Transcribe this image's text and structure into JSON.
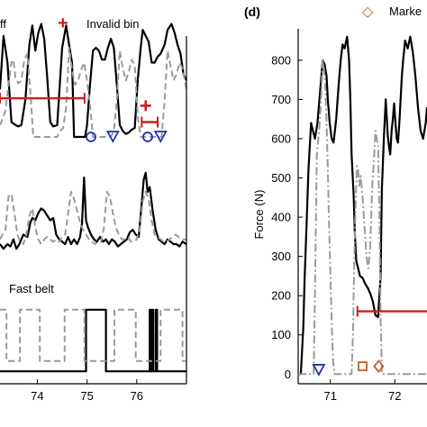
{
  "legend_left": {
    "off_label": "ff",
    "invalid_label": "Invalid bin",
    "invalid_symbol": "+"
  },
  "legend_right": {
    "marker_label": "Marke",
    "marker_symbol": "◇"
  },
  "colors": {
    "black_series": "#000000",
    "gray_series": "#9a9a9a",
    "invalid_red": "#cc1f1f",
    "blue_marker": "#1f2fb8",
    "orange_marker": "#c0622a"
  },
  "chart_data": [
    {
      "id": "left-top",
      "type": "line",
      "x_domain": [
        73.25,
        77.0
      ],
      "y_domain": [
        0,
        1
      ],
      "series": [
        {
          "style": "solid",
          "x": [
            73.25,
            73.32,
            73.4,
            73.48,
            73.56,
            73.62,
            73.68,
            73.76,
            73.84,
            73.9,
            73.96,
            74.02,
            74.08,
            74.14,
            74.2,
            74.26,
            74.32,
            74.4,
            74.5,
            74.58,
            74.64,
            74.7,
            74.74,
            74.8,
            74.86,
            74.92,
            74.96,
            75.0,
            75.06,
            75.12,
            75.18,
            75.24,
            75.3,
            75.36,
            75.42,
            75.48,
            75.54,
            75.6,
            75.66,
            75.72,
            75.78,
            75.84,
            75.9,
            75.96,
            76.02,
            76.08,
            76.12,
            76.18,
            76.24,
            76.3,
            76.36,
            76.42,
            76.48,
            76.56,
            76.62,
            76.7,
            76.76,
            76.82,
            76.88,
            76.94,
            77.0
          ],
          "y": [
            0.52,
            0.88,
            0.7,
            0.3,
            0.28,
            0.27,
            0.28,
            0.45,
            0.82,
            0.95,
            0.78,
            0.9,
            0.96,
            0.86,
            0.6,
            0.3,
            0.27,
            0.28,
            0.8,
            0.95,
            0.82,
            0.7,
            0.2,
            0.2,
            0.2,
            0.2,
            0.2,
            0.28,
            0.55,
            0.78,
            0.8,
            0.78,
            0.72,
            0.72,
            0.8,
            0.86,
            0.8,
            0.55,
            0.28,
            0.24,
            0.22,
            0.23,
            0.25,
            0.26,
            0.58,
            0.8,
            0.92,
            0.88,
            0.84,
            0.7,
            0.7,
            0.74,
            0.76,
            0.82,
            0.92,
            0.96,
            0.9,
            0.82,
            0.76,
            0.62,
            0.58
          ]
        },
        {
          "style": "dashed",
          "x": [
            73.25,
            73.3,
            73.36,
            73.42,
            73.48,
            73.52,
            73.56,
            73.62,
            73.68,
            73.74,
            73.8,
            73.86,
            73.92,
            73.98,
            74.04,
            74.1,
            74.16,
            74.22,
            74.28,
            74.34,
            74.4,
            74.46,
            74.52,
            74.58,
            74.64,
            74.7,
            74.76,
            74.82,
            74.88,
            74.94,
            75.0,
            75.06,
            75.12,
            75.18,
            75.24,
            75.3,
            75.36,
            75.42,
            75.48,
            75.54,
            75.6,
            75.66,
            75.72,
            75.78,
            75.84,
            75.9,
            75.96,
            76.02,
            76.08,
            76.14,
            76.2,
            76.26,
            76.32,
            76.38,
            76.44,
            76.5,
            76.56,
            76.62,
            76.68,
            76.74,
            76.8,
            76.86,
            76.92,
            77.0
          ],
          "y": [
            0.28,
            0.32,
            0.38,
            0.55,
            0.7,
            0.72,
            0.6,
            0.56,
            0.58,
            0.72,
            0.76,
            0.5,
            0.2,
            0.2,
            0.2,
            0.2,
            0.2,
            0.2,
            0.2,
            0.2,
            0.2,
            0.24,
            0.26,
            0.4,
            0.8,
            0.65,
            0.55,
            0.58,
            0.65,
            0.7,
            0.58,
            0.42,
            0.2,
            0.2,
            0.2,
            0.2,
            0.2,
            0.2,
            0.2,
            0.24,
            0.45,
            0.78,
            0.66,
            0.58,
            0.64,
            0.72,
            0.68,
            0.34,
            0.2,
            0.2,
            0.2,
            0.2,
            0.2,
            0.2,
            0.2,
            0.2,
            0.44,
            0.78,
            0.68,
            0.58,
            0.62,
            0.7,
            0.66,
            0.52
          ]
        }
      ],
      "invalid_bins": [
        {
          "x0": 73.25,
          "x1": 74.95,
          "y": 0.46
        },
        {
          "x0": 76.1,
          "x1": 76.42,
          "y": 0.3
        }
      ],
      "invalid_plus": [
        {
          "x": 76.18,
          "y": 0.41
        }
      ],
      "circle_markers": [
        {
          "x": 75.08,
          "y": 0.2
        },
        {
          "x": 76.22,
          "y": 0.2
        }
      ],
      "triangle_markers": [
        {
          "x": 75.52,
          "y": 0.2
        },
        {
          "x": 76.48,
          "y": 0.2
        }
      ]
    },
    {
      "id": "left-middle",
      "type": "line",
      "x_domain": [
        73.25,
        77.0
      ],
      "y_domain": [
        0,
        1
      ],
      "series": [
        {
          "style": "solid",
          "x": [
            73.25,
            73.32,
            73.4,
            73.46,
            73.52,
            73.58,
            73.64,
            73.72,
            73.8,
            73.86,
            73.9,
            73.96,
            74.02,
            74.08,
            74.14,
            74.2,
            74.26,
            74.32,
            74.38,
            74.44,
            74.5,
            74.56,
            74.62,
            74.68,
            74.74,
            74.8,
            74.86,
            74.9,
            74.94,
            74.98,
            75.02,
            75.08,
            75.14,
            75.2,
            75.26,
            75.32,
            75.38,
            75.44,
            75.5,
            75.56,
            75.62,
            75.68,
            75.74,
            75.8,
            75.86,
            75.92,
            75.98,
            76.04,
            76.1,
            76.14,
            76.18,
            76.22,
            76.26,
            76.32,
            76.38,
            76.44,
            76.5,
            76.56,
            76.62,
            76.68,
            76.74,
            76.8,
            76.86,
            76.92,
            77.0
          ],
          "y": [
            0.22,
            0.18,
            0.22,
            0.2,
            0.26,
            0.18,
            0.22,
            0.3,
            0.28,
            0.4,
            0.44,
            0.42,
            0.48,
            0.52,
            0.5,
            0.46,
            0.42,
            0.44,
            0.3,
            0.26,
            0.24,
            0.22,
            0.28,
            0.22,
            0.26,
            0.22,
            0.28,
            0.4,
            0.78,
            0.42,
            0.36,
            0.3,
            0.26,
            0.24,
            0.28,
            0.24,
            0.26,
            0.22,
            0.26,
            0.24,
            0.2,
            0.22,
            0.24,
            0.26,
            0.32,
            0.34,
            0.3,
            0.28,
            0.56,
            0.76,
            0.82,
            0.66,
            0.7,
            0.5,
            0.34,
            0.26,
            0.24,
            0.22,
            0.26,
            0.24,
            0.22,
            0.22,
            0.2,
            0.24,
            0.22
          ]
        },
        {
          "style": "dashed",
          "x": [
            73.25,
            73.3,
            73.36,
            73.42,
            73.48,
            73.54,
            73.6,
            73.66,
            73.72,
            73.78,
            73.84,
            73.9,
            73.96,
            74.02,
            74.08,
            74.14,
            74.2,
            74.26,
            74.32,
            74.38,
            74.44,
            74.5,
            74.56,
            74.62,
            74.68,
            74.74,
            74.8,
            74.86,
            74.92,
            74.98,
            75.04,
            75.1,
            75.16,
            75.22,
            75.28,
            75.34,
            75.4,
            75.46,
            75.52,
            75.58,
            75.64,
            75.7,
            75.76,
            75.82,
            75.88,
            75.94,
            76.0,
            76.06,
            76.12,
            76.18,
            76.24,
            76.3,
            76.36,
            76.42,
            76.48,
            76.54,
            76.6,
            76.66,
            76.72,
            76.78,
            76.84,
            76.9,
            77.0
          ],
          "y": [
            0.26,
            0.3,
            0.34,
            0.62,
            0.64,
            0.48,
            0.3,
            0.24,
            0.22,
            0.3,
            0.46,
            0.52,
            0.36,
            0.26,
            0.22,
            0.26,
            0.28,
            0.26,
            0.24,
            0.26,
            0.24,
            0.28,
            0.3,
            0.48,
            0.66,
            0.6,
            0.5,
            0.4,
            0.34,
            0.3,
            0.26,
            0.24,
            0.22,
            0.24,
            0.24,
            0.36,
            0.66,
            0.62,
            0.48,
            0.36,
            0.3,
            0.26,
            0.26,
            0.28,
            0.24,
            0.24,
            0.26,
            0.34,
            0.58,
            0.66,
            0.6,
            0.42,
            0.3,
            0.28,
            0.26,
            0.24,
            0.24,
            0.26,
            0.28,
            0.3,
            0.28,
            0.26,
            0.26
          ]
        }
      ]
    },
    {
      "id": "left-bottom",
      "type": "line",
      "title": "Fast belt",
      "x_domain": [
        73.25,
        77.0
      ],
      "y_domain": [
        0,
        1
      ],
      "x_ticks": [
        74,
        75,
        76
      ],
      "x_tick_labels": [
        "74",
        "75",
        "76"
      ],
      "series": [
        {
          "style": "solid",
          "x": [
            73.25,
            74.98,
            74.98,
            75.38,
            75.38,
            76.26,
            76.26,
            76.28,
            76.28,
            76.31,
            76.31,
            76.33,
            76.33,
            76.38,
            76.38,
            76.41,
            76.41,
            77.0
          ],
          "y": [
            0.05,
            0.05,
            0.95,
            0.95,
            0.05,
            0.05,
            0.95,
            0.95,
            0.05,
            0.05,
            0.95,
            0.95,
            0.05,
            0.05,
            0.95,
            0.95,
            0.05,
            0.05
          ]
        },
        {
          "style": "dashed",
          "x": [
            73.25,
            73.38,
            73.38,
            73.65,
            73.65,
            74.05,
            74.05,
            74.55,
            74.55,
            74.95,
            74.95,
            75.55,
            75.55,
            75.98,
            75.98,
            76.48,
            76.48,
            76.92,
            76.92,
            77.0
          ],
          "y": [
            0.95,
            0.95,
            0.2,
            0.2,
            0.95,
            0.95,
            0.2,
            0.2,
            0.95,
            0.95,
            0.2,
            0.2,
            0.95,
            0.95,
            0.2,
            0.2,
            0.95,
            0.95,
            0.2,
            0.2
          ]
        }
      ]
    },
    {
      "id": "right-d",
      "type": "line",
      "panel_label": "(d)",
      "ylabel": "Force (N)",
      "x_domain": [
        70.5,
        72.5
      ],
      "y_domain": [
        -20,
        880
      ],
      "y_ticks": [
        0,
        100,
        200,
        300,
        400,
        500,
        600,
        700,
        800
      ],
      "y_tick_labels": [
        "0",
        "100",
        "200",
        "300",
        "400",
        "500",
        "600",
        "700",
        "800"
      ],
      "x_ticks": [
        71,
        72
      ],
      "x_tick_labels": [
        "71",
        "72"
      ],
      "series": [
        {
          "style": "solid",
          "x": [
            70.5,
            70.52,
            70.54,
            70.58,
            70.6,
            70.63,
            70.66,
            70.7,
            70.73,
            70.76,
            70.8,
            70.84,
            70.88,
            70.91,
            70.94,
            70.96,
            70.99,
            71.02,
            71.05,
            71.09,
            71.13,
            71.16,
            71.19,
            71.22,
            71.26,
            71.29,
            71.31,
            71.33,
            71.36,
            71.38,
            71.4,
            71.43,
            71.46,
            71.5,
            71.54,
            71.58,
            71.62,
            71.66,
            71.7,
            71.74,
            71.78,
            71.8,
            71.83,
            71.86,
            71.89,
            71.91,
            71.93,
            71.95,
            71.97,
            71.99,
            72.01,
            72.03,
            72.05,
            72.07,
            72.09,
            72.11,
            72.13,
            72.16,
            72.2,
            72.24,
            72.28,
            72.32,
            72.36,
            72.4,
            72.44,
            72.48,
            72.5
          ],
          "y": [
            0,
            0,
            0,
            120,
            240,
            380,
            520,
            640,
            620,
            600,
            640,
            720,
            800,
            790,
            760,
            700,
            640,
            600,
            590,
            650,
            740,
            800,
            840,
            830,
            860,
            800,
            700,
            560,
            460,
            360,
            290,
            270,
            250,
            245,
            230,
            220,
            205,
            185,
            150,
            145,
            250,
            470,
            600,
            700,
            610,
            580,
            560,
            620,
            650,
            690,
            640,
            600,
            590,
            640,
            700,
            760,
            800,
            850,
            830,
            860,
            820,
            760,
            680,
            620,
            600,
            640,
            680
          ]
        },
        {
          "style": "dashdot",
          "x": [
            70.5,
            70.53,
            70.56,
            70.58,
            70.61,
            70.63,
            70.66,
            70.68,
            70.71,
            70.74,
            70.76,
            70.79,
            70.82,
            70.85,
            70.88,
            70.9,
            70.92,
            70.94,
            70.96,
            70.98,
            71.0,
            71.02,
            71.04,
            71.06,
            71.09,
            71.12,
            71.15,
            71.17,
            71.19,
            71.21,
            71.23,
            71.25,
            71.27,
            71.29,
            71.31,
            71.33,
            71.35,
            71.37,
            71.39,
            71.41,
            71.43,
            71.45,
            71.47,
            71.5,
            71.53,
            71.56,
            71.59,
            71.62,
            71.65,
            71.68,
            71.7,
            71.72,
            71.74,
            71.76,
            71.78,
            71.8,
            71.82,
            71.85,
            71.88,
            71.92,
            71.96,
            72.0,
            72.05,
            72.1,
            72.15,
            72.2,
            72.25,
            72.3,
            72.35,
            72.4,
            72.45,
            72.5
          ],
          "y": [
            0,
            0,
            0,
            0,
            0,
            0,
            0,
            0,
            0,
            0,
            200,
            560,
            610,
            680,
            800,
            780,
            740,
            640,
            520,
            380,
            250,
            130,
            40,
            0,
            0,
            0,
            0,
            0,
            0,
            0,
            0,
            0,
            0,
            0,
            0,
            0,
            100,
            280,
            420,
            530,
            520,
            480,
            505,
            450,
            380,
            300,
            270,
            330,
            480,
            560,
            620,
            600,
            580,
            420,
            150,
            0,
            0,
            0,
            0,
            0,
            0,
            0,
            0,
            0,
            0,
            0,
            0,
            0,
            0,
            0,
            0,
            0
          ]
        }
      ],
      "invalid_bin": {
        "x0": 71.42,
        "x1": 72.5,
        "y": 160
      },
      "triangle_marker": {
        "x": 70.82,
        "y": 10
      },
      "square_marker": {
        "x": 71.5,
        "y": 20
      },
      "diamond_marker": {
        "x": 71.75,
        "y": 20
      }
    }
  ]
}
